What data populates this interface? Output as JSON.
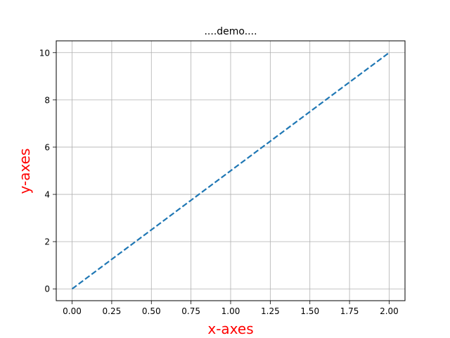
{
  "chart_data": {
    "type": "line",
    "title": "....demo....",
    "xlabel": "x-axes",
    "ylabel": "y-axes",
    "label_color": "#ff0000",
    "xlim": [
      -0.1,
      2.1
    ],
    "ylim": [
      -0.5,
      10.5
    ],
    "xticks": [
      0.0,
      0.25,
      0.5,
      0.75,
      1.0,
      1.25,
      1.5,
      1.75,
      2.0
    ],
    "xtick_labels": [
      "0.00",
      "0.25",
      "0.50",
      "0.75",
      "1.00",
      "1.25",
      "1.50",
      "1.75",
      "2.00"
    ],
    "yticks": [
      0,
      2,
      4,
      6,
      8,
      10
    ],
    "ytick_labels": [
      "0",
      "2",
      "4",
      "6",
      "8",
      "10"
    ],
    "grid": true,
    "series": [
      {
        "color": "#1f77b4",
        "linestyle": "dashed",
        "x": [
          0,
          2
        ],
        "y": [
          0,
          10
        ]
      }
    ]
  }
}
